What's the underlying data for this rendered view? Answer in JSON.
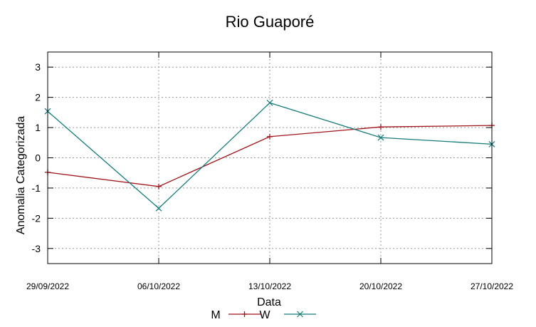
{
  "chart_data": {
    "type": "line",
    "title": "Rio Guaporé",
    "xlabel": "Data",
    "ylabel": "Anomalia Categorizada",
    "categories": [
      "29/09/2022",
      "06/10/2022",
      "13/10/2022",
      "20/10/2022",
      "27/10/2022"
    ],
    "yticks": [
      "3",
      "2",
      "1",
      "0",
      "-1",
      "-2",
      "-3"
    ],
    "ylim": [
      -3.5,
      3.5
    ],
    "grid": true,
    "legend_position": "bottom",
    "series": [
      {
        "name": "M",
        "color": "#a0151c",
        "marker": "plus",
        "values": [
          -0.48,
          -0.95,
          0.7,
          1.02,
          1.07
        ]
      },
      {
        "name": "W",
        "color": "#177c7a",
        "marker": "x",
        "values": [
          1.54,
          -1.67,
          1.82,
          0.67,
          0.45
        ]
      }
    ]
  }
}
